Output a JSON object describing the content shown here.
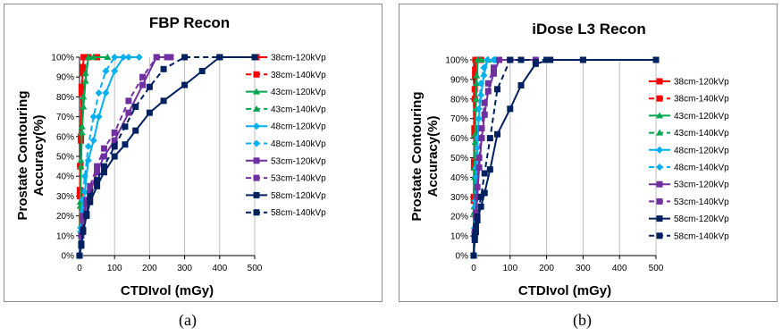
{
  "chart_data": [
    {
      "type": "line",
      "title": "FBP Recon",
      "xlabel": "CTDIvol (mGy)",
      "ylabel": "Prostate Contouring Accuracy(%)",
      "xlim": [
        0,
        500
      ],
      "ylim": [
        0,
        100
      ],
      "xticks": [
        "0",
        "100",
        "200",
        "300",
        "400",
        "500"
      ],
      "yticks": [
        "0%",
        "10%",
        "20%",
        "30%",
        "40%",
        "50%",
        "60%",
        "70%",
        "80%",
        "90%",
        "100%"
      ],
      "grid": "vertical",
      "legend": "right",
      "series": [
        {
          "name": "38cm-120kVp",
          "color": "#ff0000",
          "marker": "square",
          "dash": false,
          "points": [
            [
              0,
              0
            ],
            [
              1,
              30
            ],
            [
              2,
              45
            ],
            [
              4,
              58
            ],
            [
              6,
              82
            ],
            [
              9,
              92
            ],
            [
              12,
              100
            ],
            [
              25,
              100
            ],
            [
              50,
              100
            ]
          ]
        },
        {
          "name": "38cm-140kVp",
          "color": "#ff0000",
          "marker": "square",
          "dash": true,
          "points": [
            [
              0,
              0
            ],
            [
              1,
              33
            ],
            [
              2,
              45
            ],
            [
              4,
              60
            ],
            [
              6,
              85
            ],
            [
              9,
              95
            ],
            [
              12,
              100
            ],
            [
              25,
              100
            ],
            [
              50,
              100
            ]
          ]
        },
        {
          "name": "43cm-120kVp",
          "color": "#00a650",
          "marker": "triangle",
          "dash": false,
          "points": [
            [
              0,
              0
            ],
            [
              2,
              25
            ],
            [
              4,
              45
            ],
            [
              7,
              62
            ],
            [
              11,
              75
            ],
            [
              17,
              88
            ],
            [
              25,
              100
            ],
            [
              40,
              100
            ],
            [
              80,
              100
            ]
          ]
        },
        {
          "name": "43cm-140kVp",
          "color": "#00a650",
          "marker": "triangle",
          "dash": true,
          "points": [
            [
              0,
              0
            ],
            [
              2,
              27
            ],
            [
              4,
              48
            ],
            [
              7,
              65
            ],
            [
              11,
              80
            ],
            [
              17,
              92
            ],
            [
              25,
              100
            ],
            [
              40,
              100
            ],
            [
              80,
              100
            ]
          ]
        },
        {
          "name": "48cm-120kVp",
          "color": "#00b0f0",
          "marker": "diamond",
          "dash": false,
          "points": [
            [
              0,
              0
            ],
            [
              3,
              12
            ],
            [
              8,
              22
            ],
            [
              15,
              32
            ],
            [
              25,
              48
            ],
            [
              40,
              58
            ],
            [
              55,
              70
            ],
            [
              75,
              82
            ],
            [
              100,
              93
            ],
            [
              125,
              100
            ],
            [
              170,
              100
            ]
          ]
        },
        {
          "name": "48cm-140kVp",
          "color": "#00b0f0",
          "marker": "diamond",
          "dash": true,
          "points": [
            [
              0,
              0
            ],
            [
              3,
              14
            ],
            [
              8,
              28
            ],
            [
              15,
              40
            ],
            [
              25,
              55
            ],
            [
              40,
              70
            ],
            [
              55,
              82
            ],
            [
              75,
              93
            ],
            [
              100,
              100
            ],
            [
              140,
              100
            ]
          ]
        },
        {
          "name": "53cm-120kVp",
          "color": "#7030a0",
          "marker": "square",
          "dash": false,
          "points": [
            [
              0,
              0
            ],
            [
              5,
              10
            ],
            [
              10,
              18
            ],
            [
              20,
              26
            ],
            [
              30,
              32
            ],
            [
              50,
              42
            ],
            [
              70,
              50
            ],
            [
              100,
              58
            ],
            [
              140,
              72
            ],
            [
              180,
              86
            ],
            [
              220,
              100
            ],
            [
              260,
              100
            ]
          ]
        },
        {
          "name": "53cm-140kVp",
          "color": "#7030a0",
          "marker": "square",
          "dash": true,
          "points": [
            [
              0,
              0
            ],
            [
              5,
              10
            ],
            [
              10,
              20
            ],
            [
              20,
              28
            ],
            [
              30,
              35
            ],
            [
              50,
              45
            ],
            [
              70,
              54
            ],
            [
              100,
              62
            ],
            [
              140,
              78
            ],
            [
              180,
              90
            ],
            [
              220,
              100
            ],
            [
              250,
              100
            ]
          ]
        },
        {
          "name": "58cm-120kVp",
          "color": "#002060",
          "marker": "square",
          "dash": false,
          "points": [
            [
              0,
              0
            ],
            [
              5,
              5
            ],
            [
              10,
              12
            ],
            [
              20,
              20
            ],
            [
              30,
              27
            ],
            [
              50,
              35
            ],
            [
              70,
              42
            ],
            [
              100,
              50
            ],
            [
              130,
              56
            ],
            [
              160,
              63
            ],
            [
              200,
              72
            ],
            [
              240,
              78
            ],
            [
              300,
              86
            ],
            [
              350,
              93
            ],
            [
              400,
              100
            ],
            [
              500,
              100
            ]
          ]
        },
        {
          "name": "58cm-140kVp",
          "color": "#002060",
          "marker": "square",
          "dash": true,
          "points": [
            [
              0,
              0
            ],
            [
              5,
              6
            ],
            [
              10,
              13
            ],
            [
              20,
              21
            ],
            [
              30,
              30
            ],
            [
              50,
              38
            ],
            [
              70,
              45
            ],
            [
              100,
              55
            ],
            [
              130,
              65
            ],
            [
              160,
              75
            ],
            [
              200,
              85
            ],
            [
              240,
              94
            ],
            [
              300,
              100
            ],
            [
              400,
              100
            ]
          ]
        }
      ]
    },
    {
      "type": "line",
      "title": "iDose L3 Recon",
      "xlabel": "CTDIvol (mGy)",
      "ylabel": "Prostate Contouring Accuracy(%)",
      "xlim": [
        0,
        500
      ],
      "ylim": [
        0,
        100
      ],
      "xticks": [
        "0",
        "100",
        "200",
        "300",
        "400",
        "500"
      ],
      "yticks": [
        "0%",
        "10%",
        "20%",
        "30%",
        "40%",
        "50%",
        "60%",
        "70%",
        "80%",
        "90%",
        "100%"
      ],
      "grid": "vertical",
      "legend": "right",
      "series": [
        {
          "name": "38cm-120kVp",
          "color": "#ff0000",
          "marker": "square",
          "dash": false,
          "points": [
            [
              0,
              0
            ],
            [
              0.5,
              28
            ],
            [
              1,
              45
            ],
            [
              2,
              62
            ],
            [
              3,
              80
            ],
            [
              4,
              92
            ],
            [
              5,
              100
            ],
            [
              10,
              100
            ],
            [
              20,
              100
            ]
          ]
        },
        {
          "name": "38cm-140kVp",
          "color": "#ff0000",
          "marker": "square",
          "dash": true,
          "points": [
            [
              0,
              0
            ],
            [
              0.5,
              30
            ],
            [
              1,
              48
            ],
            [
              2,
              65
            ],
            [
              3,
              85
            ],
            [
              4,
              95
            ],
            [
              5,
              100
            ],
            [
              10,
              100
            ],
            [
              20,
              100
            ]
          ]
        },
        {
          "name": "43cm-120kVp",
          "color": "#00a650",
          "marker": "triangle",
          "dash": false,
          "points": [
            [
              0,
              0
            ],
            [
              1,
              22
            ],
            [
              2,
              40
            ],
            [
              4,
              58
            ],
            [
              6,
              75
            ],
            [
              8,
              88
            ],
            [
              11,
              100
            ],
            [
              20,
              100
            ],
            [
              40,
              100
            ]
          ]
        },
        {
          "name": "43cm-140kVp",
          "color": "#00a650",
          "marker": "triangle",
          "dash": true,
          "points": [
            [
              0,
              0
            ],
            [
              1,
              25
            ],
            [
              2,
              45
            ],
            [
              4,
              62
            ],
            [
              6,
              80
            ],
            [
              8,
              92
            ],
            [
              11,
              100
            ],
            [
              20,
              100
            ],
            [
              40,
              100
            ]
          ]
        },
        {
          "name": "48cm-120kVp",
          "color": "#00b0f0",
          "marker": "diamond",
          "dash": false,
          "points": [
            [
              0,
              0
            ],
            [
              2,
              12
            ],
            [
              4,
              25
            ],
            [
              7,
              40
            ],
            [
              10,
              55
            ],
            [
              14,
              70
            ],
            [
              20,
              82
            ],
            [
              28,
              92
            ],
            [
              38,
              100
            ],
            [
              60,
              100
            ]
          ]
        },
        {
          "name": "48cm-140kVp",
          "color": "#00b0f0",
          "marker": "diamond",
          "dash": true,
          "points": [
            [
              0,
              0
            ],
            [
              2,
              14
            ],
            [
              4,
              28
            ],
            [
              7,
              45
            ],
            [
              10,
              60
            ],
            [
              14,
              75
            ],
            [
              20,
              88
            ],
            [
              28,
              96
            ],
            [
              38,
              100
            ],
            [
              55,
              100
            ]
          ]
        },
        {
          "name": "53cm-120kVp",
          "color": "#7030a0",
          "marker": "square",
          "dash": false,
          "points": [
            [
              0,
              0
            ],
            [
              3,
              10
            ],
            [
              6,
              20
            ],
            [
              10,
              30
            ],
            [
              15,
              45
            ],
            [
              22,
              60
            ],
            [
              30,
              72
            ],
            [
              40,
              84
            ],
            [
              55,
              93
            ],
            [
              70,
              100
            ],
            [
              100,
              100
            ],
            [
              170,
              100
            ]
          ]
        },
        {
          "name": "53cm-140kVp",
          "color": "#7030a0",
          "marker": "square",
          "dash": true,
          "points": [
            [
              0,
              0
            ],
            [
              3,
              12
            ],
            [
              6,
              22
            ],
            [
              10,
              35
            ],
            [
              15,
              50
            ],
            [
              22,
              65
            ],
            [
              30,
              78
            ],
            [
              40,
              88
            ],
            [
              55,
              96
            ],
            [
              70,
              100
            ],
            [
              100,
              100
            ]
          ]
        },
        {
          "name": "58cm-120kVp",
          "color": "#002060",
          "marker": "square",
          "dash": false,
          "points": [
            [
              0,
              0
            ],
            [
              3,
              8
            ],
            [
              6,
              12
            ],
            [
              10,
              18
            ],
            [
              20,
              25
            ],
            [
              30,
              32
            ],
            [
              45,
              44
            ],
            [
              65,
              62
            ],
            [
              100,
              75
            ],
            [
              130,
              87
            ],
            [
              170,
              98
            ],
            [
              210,
              100
            ],
            [
              300,
              100
            ],
            [
              500,
              100
            ]
          ]
        },
        {
          "name": "58cm-140kVp",
          "color": "#002060",
          "marker": "square",
          "dash": true,
          "points": [
            [
              0,
              0
            ],
            [
              3,
              10
            ],
            [
              6,
              15
            ],
            [
              10,
              20
            ],
            [
              20,
              30
            ],
            [
              30,
              42
            ],
            [
              45,
              60
            ],
            [
              65,
              85
            ],
            [
              100,
              100
            ],
            [
              130,
              100
            ],
            [
              200,
              100
            ],
            [
              300,
              100
            ]
          ]
        }
      ]
    }
  ],
  "captions": [
    "(a)",
    "(b)"
  ]
}
